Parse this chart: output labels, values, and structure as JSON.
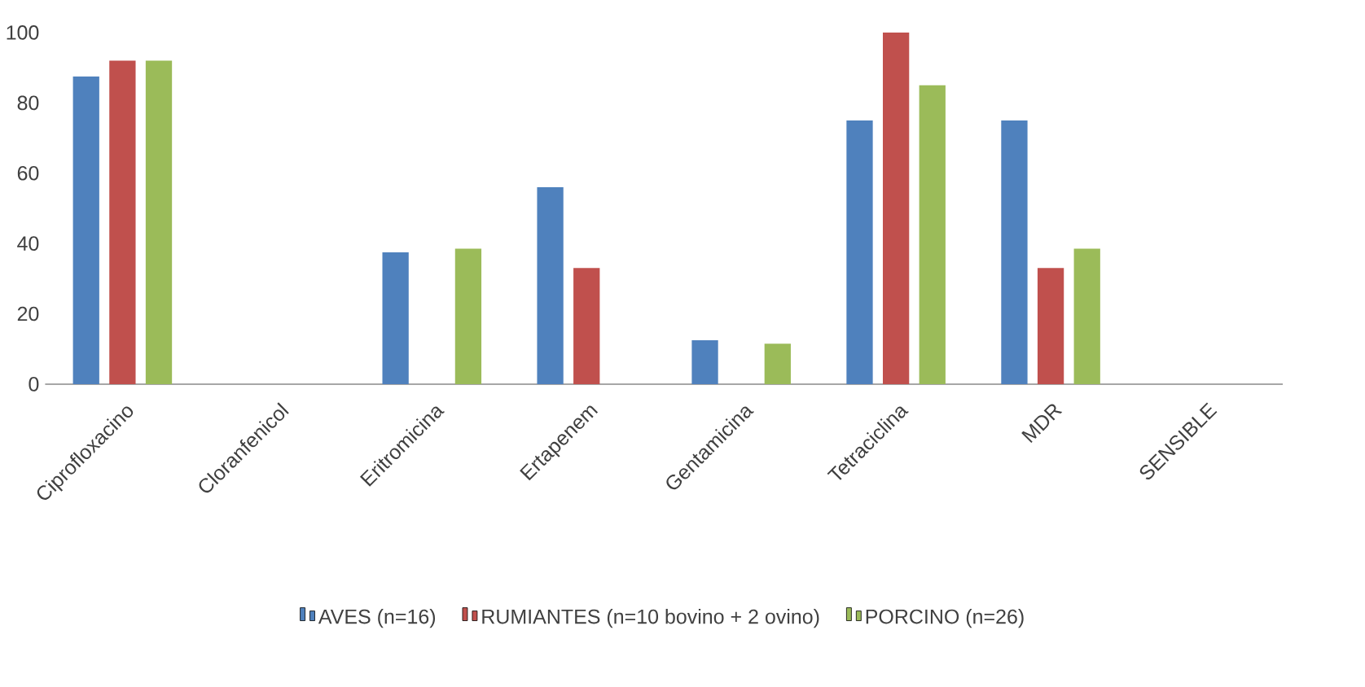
{
  "chart_data": {
    "type": "bar",
    "categories": [
      "Ciprofloxacino",
      "Cloranfenicol",
      "Eritromicina",
      "Ertapenem",
      "Gentamicina",
      "Tetraciclina",
      "MDR",
      "SENSIBLE"
    ],
    "series": [
      {
        "name": "AVES (n=16)",
        "color": "#4f81bd",
        "values": [
          87.5,
          0,
          37.5,
          56,
          12.5,
          75,
          75,
          0
        ]
      },
      {
        "name": "RUMIANTES (n=10 bovino + 2 ovino)",
        "color": "#c0504d",
        "values": [
          92,
          0,
          0,
          33,
          0,
          100,
          33,
          0
        ]
      },
      {
        "name": "PORCINO (n=26)",
        "color": "#9bbb59",
        "values": [
          92,
          0,
          38.5,
          0,
          11.5,
          85,
          38.5,
          0
        ]
      }
    ],
    "ylim": [
      0,
      100
    ],
    "yticks": [
      0,
      20,
      40,
      60,
      80,
      100
    ],
    "legend": "bottom"
  }
}
